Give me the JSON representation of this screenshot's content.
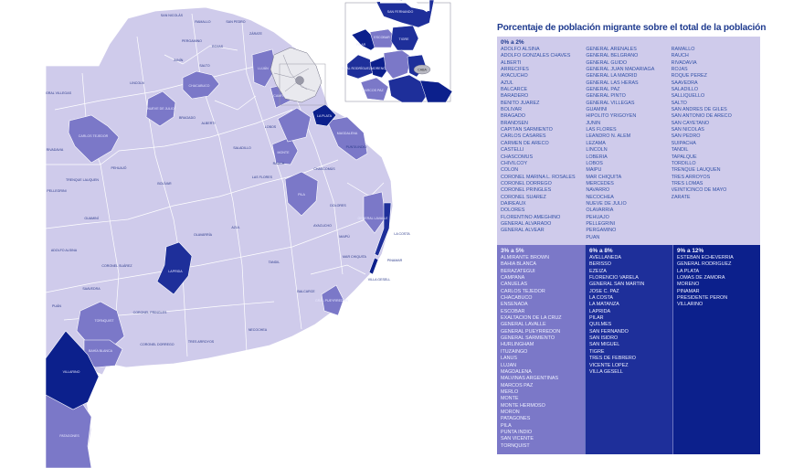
{
  "legend": {
    "title": "Porcentaje de población migrante sobre el total de la población",
    "ranges": [
      {
        "label": "0% a 2%",
        "color": "#cfcbeb",
        "columns": [
          [
            "ADOLFO ALSINA",
            "ADOLFO GONZALES CHAVES",
            "ALBERTI",
            "ARRECIFES",
            "AYACUCHO",
            "AZUL",
            "BALCARCE",
            "BARADERO",
            "BENITO JUÁREZ",
            "BOLÍVAR",
            "BRAGADO",
            "BRANDSEN",
            "CAPITÁN SARMIENTO",
            "CARLOS CASARES",
            "CARMEN DE ARECO",
            "CASTELLI",
            "CHASCOMÚS",
            "CHIVILCOY",
            "COLÓN",
            "CORONEL MARINA L. ROSALES",
            "CORONEL DORREGO",
            "CORONEL PRINGLES",
            "CORONEL SUÁREZ",
            "DAIREAUX",
            "DOLORES",
            "FLORENTINO AMEGHINO",
            "GENERAL ALVARADO",
            "GENERAL ALVEAR"
          ],
          [
            "GENERAL ARENALES",
            "GENERAL BELGRANO",
            "GENERAL GUIDO",
            "GENERAL JUAN MADARIAGA",
            "GENERAL LA MADRID",
            "GENERAL LAS HERAS",
            "GENERAL PAZ",
            "GENERAL PINTO",
            "GENERAL VILLEGAS",
            "GUAMINÍ",
            "HIPÓLITO YRIGOYEN",
            "JUNÍN",
            "LAS FLORES",
            "LEANDRO N. ALEM",
            "LEZAMA",
            "LINCOLN",
            "LOBERÍA",
            "LOBOS",
            "MAIPÚ",
            "MAR CHIQUITA",
            "MERCEDES",
            "NAVARRO",
            "NECOCHEA",
            "NUEVE DE JULIO",
            "OLAVARRÍA",
            "PEHUAJÓ",
            "PELLEGRINI",
            "PERGAMINO",
            "PUÁN"
          ],
          [
            "RAMALLO",
            "RAUCH",
            "RIVADAVIA",
            "ROJAS",
            "ROQUE PÉREZ",
            "SAAVEDRA",
            "SALADILLO",
            "SALLIQUELLÓ",
            "SALTO",
            "SAN ANDRÉS DE GILES",
            "SAN ANTONIO DE ARECO",
            "SAN CAYETANO",
            "SAN NICOLÁS",
            "SAN PEDRO",
            "SUIPACHA",
            "TANDIL",
            "TAPALQUÉ",
            "TORDILLO",
            "TRENQUE LAUQUEN",
            "TRES ARROYOS",
            "TRES LOMAS",
            "VEINTICINCO DE MAYO",
            "ZÁRATE"
          ]
        ]
      },
      {
        "label": "3% a 5%",
        "color": "#7b78c8",
        "items": [
          "ALMIRANTE BROWN",
          "BAHÍA BLANCA",
          "BERAZATEGUI",
          "CAMPANA",
          "CAÑUELAS",
          "CARLOS TEJEDOR",
          "CHACABUCO",
          "ENSENADA",
          "ESCOBAR",
          "EXALTACIÓN DE LA CRUZ",
          "GENERAL LAVALLE",
          "GENERAL PUEYRREDÓN",
          "GENERAL SARMIENTO",
          "HURLINGHAM",
          "ITUZAINGÓ",
          "LANÚS",
          "LUJÁN",
          "MAGDALENA",
          "MALVINAS ARGENTINAS",
          "MARCOS PAZ",
          "MERLO",
          "MONTE",
          "MONTE HERMOSO",
          "MORÓN",
          "PATAGONES",
          "PILA",
          "PUNTA INDIO",
          "SAN VICENTE",
          "TORNQUIST"
        ]
      },
      {
        "label": "6% a 8%",
        "color": "#1e2f9a",
        "items": [
          "AVELLANEDA",
          "BERISSO",
          "EZEIZA",
          "FLORENCIO VARELA",
          "GENERAL SAN MARTÍN",
          "JOSÉ C. PAZ",
          "LA COSTA",
          "LA MATANZA",
          "LAPRIDA",
          "PILAR",
          "QUILMES",
          "SAN FERNANDO",
          "SAN ISIDRO",
          "SAN MIGUEL",
          "TIGRE",
          "TRES DE FEBRERO",
          "VICENTE LÓPEZ",
          "VILLA GESELL"
        ]
      },
      {
        "label": "9% a 12%",
        "color": "#0c208c",
        "items": [
          "ESTEBAN ECHEVERRÍA",
          "GENERAL RODRÍGUEZ",
          "LA PLATA",
          "LOMAS DE ZAMORA",
          "MORENO",
          "PINAMAR",
          "PRESIDENTE PERÓN",
          "VILLARINO"
        ]
      }
    ]
  },
  "map": {
    "base_color": "#cfcbeb",
    "caba_color": "#e9e9ee",
    "labels": {
      "carlos_tejedor": "CARLOS TEJEDOR",
      "chacabuco": "CHACABUCO",
      "nueve_de_julio": "NUEVE DE JULIO",
      "pila": "PILA",
      "laprida": "LAPRIDA",
      "villarino": "VILLARINO",
      "patagones": "PATAGONES",
      "tornquist": "TORNQUIST",
      "bahia_blanca": "BAHÍA BLANCA",
      "la_costa": "LA COSTA",
      "pinamar": "PINAMAR",
      "villa_gesell": "VILLA GESELL",
      "gral_lavalle": "GENERAL LAVALLE",
      "mar_chiquita": "MAR CHIQUITA",
      "gral_pueyrredon": "GRAL PUEYRREDÓN",
      "trenque_lauquen": "TRENQUE LAUQUEN",
      "pehuajo": "PEHUAJÓ",
      "bolivar": "BOLÍVAR",
      "olavarria": "OLAVARRÍA",
      "azul": "AZUL",
      "tandil": "TANDIL",
      "tres_arroyos": "TRES ARROYOS",
      "necochea": "NECOCHEA",
      "coronel_suarez": "CORONEL SUÁREZ",
      "coronel_pringles": "CORONEL PRINGLES",
      "coronel_dorrego": "CORONEL DORREGO",
      "guamini": "GUAMINÍ",
      "adolfo_alsina": "ADOLFO ALSINA",
      "puan": "PUÁN",
      "saavedra": "SAAVEDRA",
      "pellegrini": "PELLEGRINI",
      "rivadavia": "RIVADAVIA",
      "gral_villegas": "GRAL VILLEGAS",
      "lincoln": "LINCOLN",
      "junin": "JUNÍN",
      "pergamino": "PERGAMINO",
      "rojas": "ROJAS",
      "salto": "SALTO",
      "bragado": "BRAGADO",
      "alberti": "ALBERTI",
      "saladillo": "SALADILLO",
      "las_flores": "LAS FLORES",
      "rauch": "RAUCH",
      "ayacucho": "AYACUCHO",
      "maipu": "MAIPÚ",
      "dolores": "DOLORES",
      "chascomus": "CHASCOMÚS",
      "magdalena": "MAGDALENA",
      "punta_indio": "PUNTA INDIO",
      "la_plata": "LA PLATA",
      "balcarce": "BALCARCE",
      "lobos": "LOBOS",
      "monte": "MONTE",
      "san_nicolas": "SAN NICOLÁS",
      "san_pedro": "SAN PEDRO",
      "ramallo": "RAMALLO",
      "zarate": "ZÁRATE",
      "campana": "CAMPANA",
      "escobar": "ESCOBAR",
      "pilar": "PILAR",
      "lujan": "LUJÁN",
      "tigre": "TIGRE",
      "san_fernando": "SAN FERNANDO",
      "moreno": "MORENO",
      "marcos_paz": "MARCOS PAZ",
      "gral_rodriguez": "GRAL RODRÍGUEZ",
      "caba": "CABA"
    }
  }
}
